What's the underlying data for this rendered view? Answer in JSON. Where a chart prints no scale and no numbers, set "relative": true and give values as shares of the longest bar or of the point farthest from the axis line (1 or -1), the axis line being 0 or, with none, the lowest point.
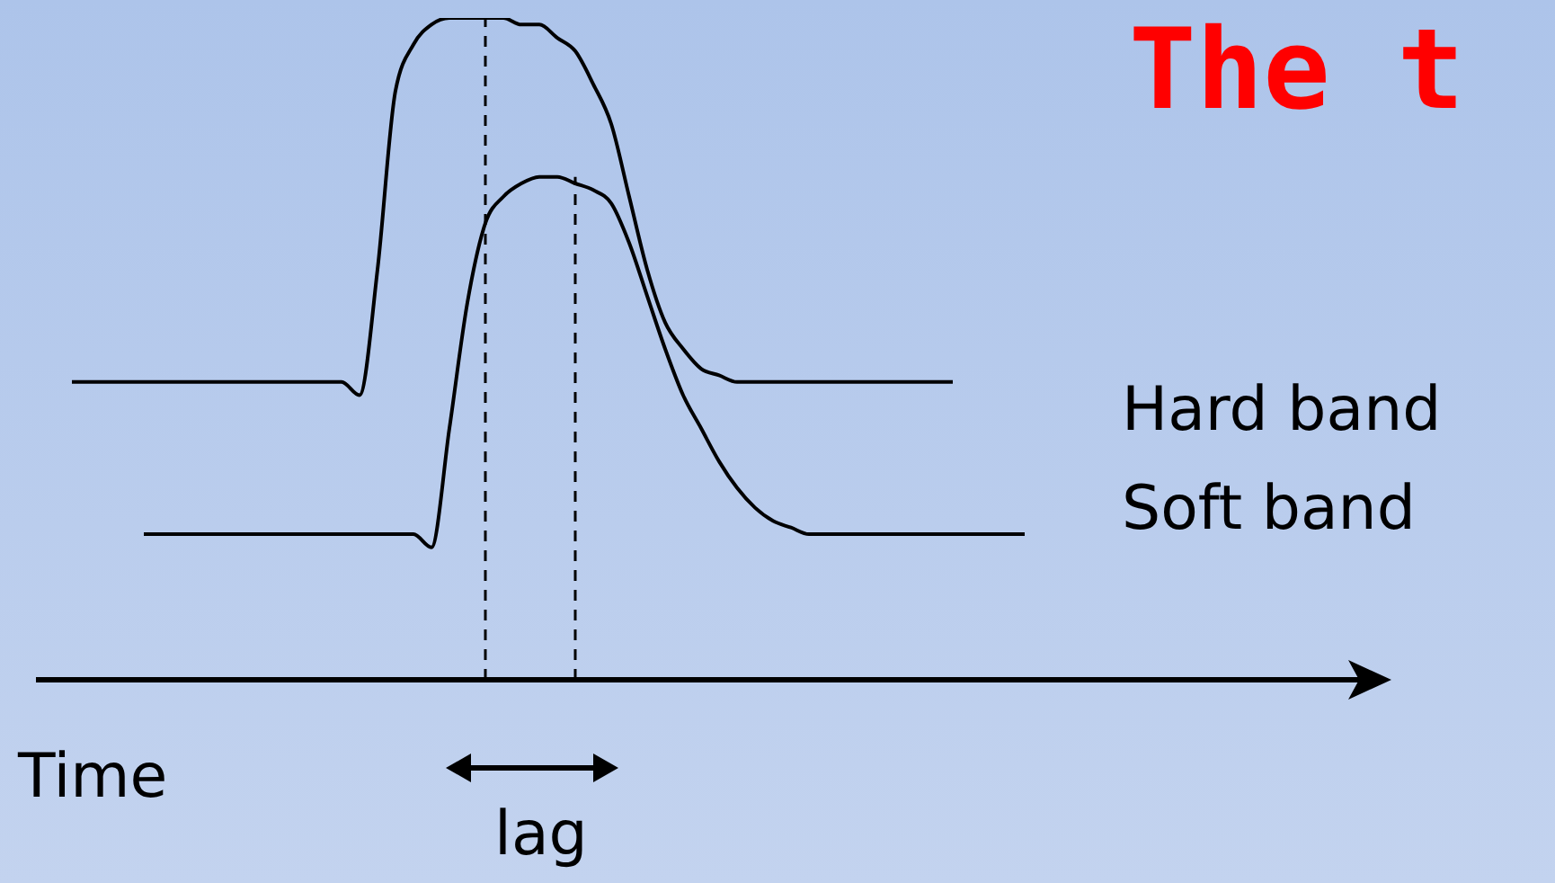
{
  "chart_data": {
    "type": "line",
    "title": "The t",
    "xlabel": "Time",
    "relative": true,
    "grid": false,
    "legend": false,
    "marker": "none",
    "line_style": "solid",
    "categories": [
      null,
      null,
      null,
      null,
      null,
      null,
      null,
      null,
      null,
      null,
      null,
      null,
      null,
      null,
      null,
      null,
      null,
      null,
      null,
      null,
      null,
      null,
      null,
      null,
      null,
      null,
      null,
      null,
      null,
      null,
      null,
      null,
      null,
      null,
      null,
      null,
      null,
      null,
      null,
      null,
      null,
      null,
      null,
      null,
      null,
      null,
      null,
      null,
      null,
      null,
      null,
      null,
      null,
      null
    ],
    "series": [
      {
        "name": "Hard band",
        "color": "#000000",
        "values": [
          0.45,
          0.45,
          0.45,
          0.45,
          0.45,
          0.45,
          0.45,
          0.45,
          0.45,
          0.45,
          0.45,
          0.45,
          0.45,
          0.45,
          0.45,
          0.45,
          0.43,
          0.62,
          0.89,
          0.96,
          0.99,
          1,
          1,
          1,
          1,
          0.99,
          0.99,
          0.97,
          0.95,
          0.9,
          0.84,
          0.73,
          0.62,
          0.54,
          0.5,
          0.47,
          0.46,
          0.45,
          0.45,
          0.45,
          0.45,
          0.45,
          0.45,
          0.45,
          0.45,
          0.45,
          0.45,
          0.45,
          0.45,
          0.45,
          null,
          null,
          null,
          null
        ]
      },
      {
        "name": "Soft band",
        "color": "#000000",
        "values": [
          null,
          null,
          null,
          null,
          0.22,
          0.22,
          0.22,
          0.22,
          0.22,
          0.22,
          0.22,
          0.22,
          0.22,
          0.22,
          0.22,
          0.22,
          0.22,
          0.22,
          0.22,
          0.22,
          0.2,
          0.38,
          0.57,
          0.69,
          0.73,
          0.75,
          0.76,
          0.76,
          0.75,
          0.74,
          0.72,
          0.66,
          0.58,
          0.5,
          0.43,
          0.38,
          0.33,
          0.29,
          0.26,
          0.24,
          0.23,
          0.22,
          0.22,
          0.22,
          0.22,
          0.22,
          0.22,
          0.22,
          0.22,
          0.22,
          0.22,
          0.22,
          0.22,
          0.22
        ]
      }
    ],
    "annotations": [
      "lag"
    ]
  }
}
